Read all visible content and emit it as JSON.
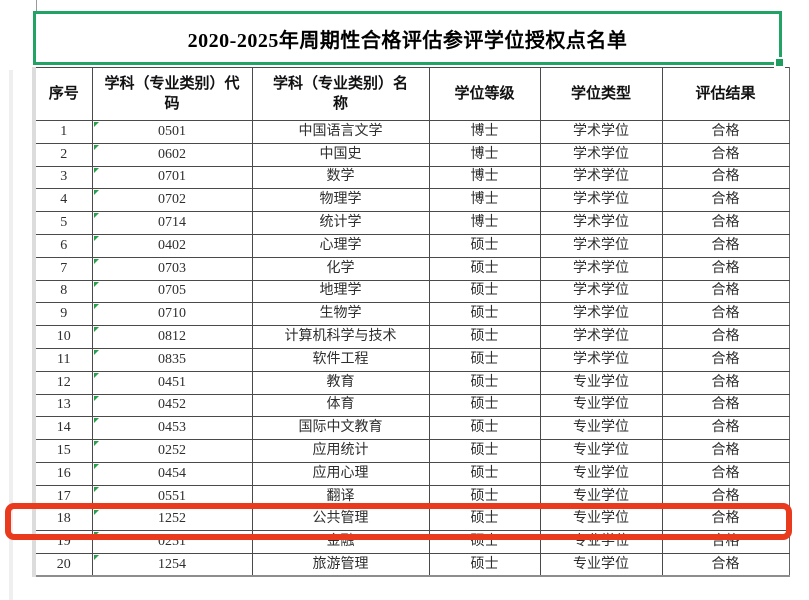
{
  "title": "2020-2025年周期性合格评估参评学位授权点名单",
  "colors": {
    "selection_green": "#21a366",
    "highlight_red": "#e93a1e",
    "indicator_triangle_green": "#2a9e4a",
    "grid_line": "#4a4a4a"
  },
  "table": {
    "columns": [
      "序号",
      "学科（专业类别）代\n码",
      "学科（专业类别）名\n称",
      "学位等级",
      "学位类型",
      "评估结果"
    ],
    "rows": [
      [
        "1",
        "0501",
        "中国语言文学",
        "博士",
        "学术学位",
        "合格"
      ],
      [
        "2",
        "0602",
        "中国史",
        "博士",
        "学术学位",
        "合格"
      ],
      [
        "3",
        "0701",
        "数学",
        "博士",
        "学术学位",
        "合格"
      ],
      [
        "4",
        "0702",
        "物理学",
        "博士",
        "学术学位",
        "合格"
      ],
      [
        "5",
        "0714",
        "统计学",
        "博士",
        "学术学位",
        "合格"
      ],
      [
        "6",
        "0402",
        "心理学",
        "硕士",
        "学术学位",
        "合格"
      ],
      [
        "7",
        "0703",
        "化学",
        "硕士",
        "学术学位",
        "合格"
      ],
      [
        "8",
        "0705",
        "地理学",
        "硕士",
        "学术学位",
        "合格"
      ],
      [
        "9",
        "0710",
        "生物学",
        "硕士",
        "学术学位",
        "合格"
      ],
      [
        "10",
        "0812",
        "计算机科学与技术",
        "硕士",
        "学术学位",
        "合格"
      ],
      [
        "11",
        "0835",
        "软件工程",
        "硕士",
        "学术学位",
        "合格"
      ],
      [
        "12",
        "0451",
        "教育",
        "硕士",
        "专业学位",
        "合格"
      ],
      [
        "13",
        "0452",
        "体育",
        "硕士",
        "专业学位",
        "合格"
      ],
      [
        "14",
        "0453",
        "国际中文教育",
        "硕士",
        "专业学位",
        "合格"
      ],
      [
        "15",
        "0252",
        "应用统计",
        "硕士",
        "专业学位",
        "合格"
      ],
      [
        "16",
        "0454",
        "应用心理",
        "硕士",
        "专业学位",
        "合格"
      ],
      [
        "17",
        "0551",
        "翻译",
        "硕士",
        "专业学位",
        "合格"
      ],
      [
        "18",
        "1252",
        "公共管理",
        "硕士",
        "专业学位",
        "合格"
      ],
      [
        "19",
        "0251",
        "金融",
        "硕士",
        "专业学位",
        "合格"
      ],
      [
        "20",
        "1254",
        "旅游管理",
        "硕士",
        "专业学位",
        "合格"
      ]
    ],
    "highlighted_row_number": "18"
  }
}
